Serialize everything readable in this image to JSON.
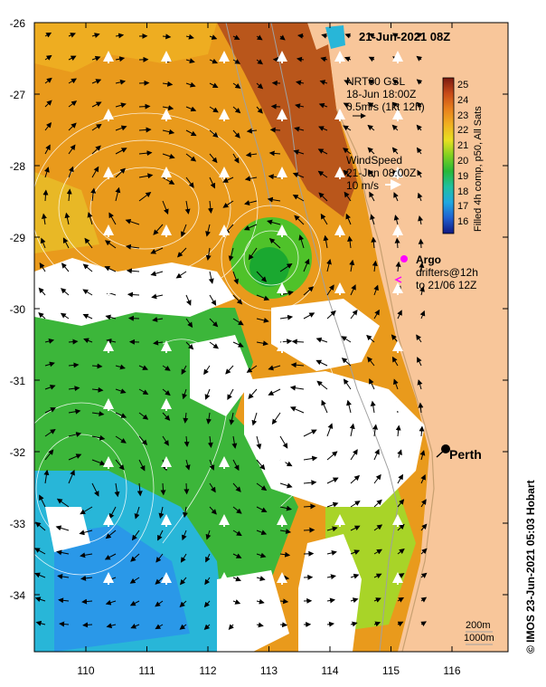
{
  "map": {
    "date_title": "21-Jun-2021 08Z",
    "current_legend": {
      "line1": "NRT00 GSL",
      "line2": "18-Jun 18:00Z",
      "line3": "0.5m/s (1kt 12h)"
    },
    "wind_legend": {
      "line1": "WindSpeed",
      "line2": "21-Jun 08:00Z",
      "line3": "10 m/s"
    },
    "argo_label": "Argo",
    "drifter_line1": "drifters@12h",
    "drifter_line2": "to 21/06 12Z",
    "city": "Perth",
    "depth_200": "200m",
    "depth_1000": "1000m",
    "colorbar_label": "Filled 4h comp, p50, All Sats",
    "colorbar_ticks": [
      "25",
      "24",
      "23",
      "22",
      "21",
      "20",
      "19",
      "18",
      "17",
      "16"
    ],
    "credit": "© IMOS 23-Jun-2021 05:03 Hobart",
    "lat_ticks": [
      "-26",
      "-27",
      "-28",
      "-29",
      "-30",
      "-31",
      "-32",
      "-33",
      "-34"
    ],
    "lon_ticks": [
      "110",
      "111",
      "112",
      "113",
      "114",
      "115",
      "116"
    ],
    "colors": {
      "land": "#f8c69a",
      "warm": "#e8931c",
      "hot": "#b8561a",
      "mid": "#f0b020",
      "green": "#4fc22a",
      "cyan": "#27b8d8",
      "blue": "#2a9ae8",
      "cloud": "#ffffff",
      "argo": "#ff00ff"
    }
  }
}
